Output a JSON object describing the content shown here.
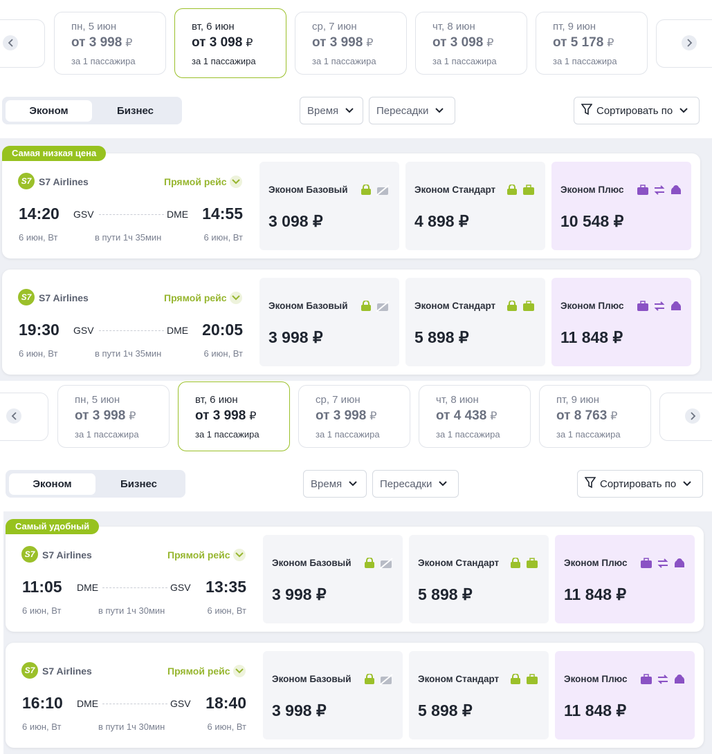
{
  "currency": "₽",
  "per_passenger": "за 1 пассажира",
  "sections": [
    {
      "dates": [
        {
          "day": "пн, 5 июн",
          "price": "от 3 998"
        },
        {
          "day": "вт, 6 июн",
          "price": "от 3 098"
        },
        {
          "day": "ср, 7 июн",
          "price": "от 3 998"
        },
        {
          "day": "чт, 8 июн",
          "price": "от 3 098"
        },
        {
          "day": "пт, 9 июн",
          "price": "от 5 178"
        }
      ],
      "tabs": [
        "Эконом",
        "Бизнес"
      ],
      "filters": [
        "Время",
        "Пересадки"
      ],
      "sort": "Сортировать по",
      "badge": "Самая низкая цена",
      "flights": [
        {
          "airline_logo": "S7",
          "airline": "S7 Airlines",
          "direct": "Прямой рейс",
          "dep_time": "14:20",
          "from": "GSV",
          "to": "DME",
          "arr_time": "14:55",
          "dep_date": "6 июн, Вт",
          "duration": "в пути 1ч 35мин",
          "arr_date": "6 июн, Вт",
          "fares": [
            {
              "name": "Эконом Базовый",
              "price": "3 098 ₽"
            },
            {
              "name": "Эконом Стандарт",
              "price": "4 898 ₽"
            },
            {
              "name": "Эконом Плюс",
              "price": "10 548 ₽"
            }
          ]
        },
        {
          "airline_logo": "S7",
          "airline": "S7 Airlines",
          "direct": "Прямой рейс",
          "dep_time": "19:30",
          "from": "GSV",
          "to": "DME",
          "arr_time": "20:05",
          "dep_date": "6 июн, Вт",
          "duration": "в пути 1ч 35мин",
          "arr_date": "6 июн, Вт",
          "fares": [
            {
              "name": "Эконом Базовый",
              "price": "3 998 ₽"
            },
            {
              "name": "Эконом Стандарт",
              "price": "5 898 ₽"
            },
            {
              "name": "Эконом Плюс",
              "price": "11 848 ₽"
            }
          ]
        }
      ]
    },
    {
      "dates": [
        {
          "day": "пн, 5 июн",
          "price": "от 3 998"
        },
        {
          "day": "вт, 6 июн",
          "price": "от 3 998"
        },
        {
          "day": "ср, 7 июн",
          "price": "от 3 998"
        },
        {
          "day": "чт, 8 июн",
          "price": "от 4 438"
        },
        {
          "day": "пт, 9 июн",
          "price": "от 8 763"
        }
      ],
      "tabs": [
        "Эконом",
        "Бизнес"
      ],
      "filters": [
        "Время",
        "Пересадки"
      ],
      "sort": "Сортировать по",
      "badge": "Самый удобный",
      "flights": [
        {
          "airline_logo": "S7",
          "airline": "S7 Airlines",
          "direct": "Прямой рейс",
          "dep_time": "11:05",
          "from": "DME",
          "to": "GSV",
          "arr_time": "13:35",
          "dep_date": "6 июн, Вт",
          "duration": "в пути 1ч 30мин",
          "arr_date": "6 июн, Вт",
          "fares": [
            {
              "name": "Эконом Базовый",
              "price": "3 998 ₽"
            },
            {
              "name": "Эконом Стандарт",
              "price": "5 898 ₽"
            },
            {
              "name": "Эконом Плюс",
              "price": "11 848 ₽"
            }
          ]
        },
        {
          "airline_logo": "S7",
          "airline": "S7 Airlines",
          "direct": "Прямой рейс",
          "dep_time": "16:10",
          "from": "DME",
          "to": "GSV",
          "arr_time": "18:40",
          "dep_date": "6 июн, Вт",
          "duration": "в пути 1ч 30мин",
          "arr_date": "6 июн, Вт",
          "fares": [
            {
              "name": "Эконом Базовый",
              "price": "3 998 ₽"
            },
            {
              "name": "Эконом Стандарт",
              "price": "5 898 ₽"
            },
            {
              "name": "Эконом Плюс",
              "price": "11 848 ₽"
            }
          ]
        }
      ]
    }
  ]
}
